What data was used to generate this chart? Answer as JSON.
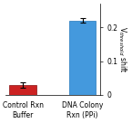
{
  "categories": [
    "Control Rxn\nBuffer",
    "DNA Colony\nRxn (PPi)"
  ],
  "values": [
    0.03,
    0.22
  ],
  "errors": [
    0.008,
    0.007
  ],
  "bar_colors": [
    "#cc2222",
    "#4499dd"
  ],
  "ylim": [
    0,
    0.27
  ],
  "yticks": [
    0,
    0.1,
    0.2
  ],
  "ylabel": "V$_{threshold}$ shift",
  "bar_width": 0.45,
  "figsize": [
    1.45,
    1.36
  ],
  "dpi": 100,
  "background_color": "#ffffff",
  "tick_labelsize": 5.5,
  "ylabel_fontsize": 5.5
}
